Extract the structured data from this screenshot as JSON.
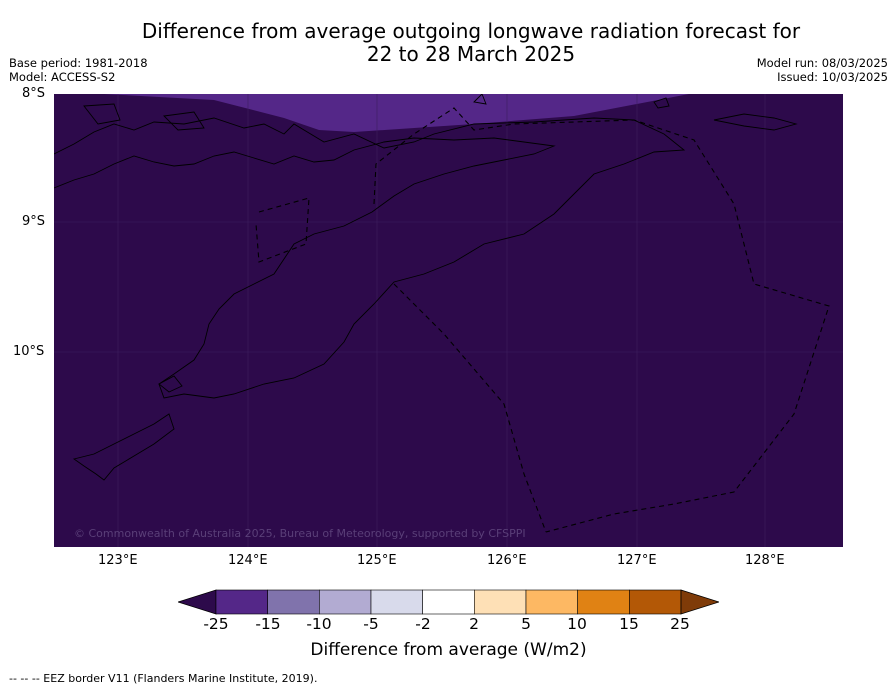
{
  "title_line1": "Difference from average outgoing longwave radiation forecast for",
  "title_line2": "22 to 28 March 2025",
  "meta_left": [
    "Base period: 1981-2018",
    "Model: ACCESS-S2"
  ],
  "meta_right": [
    "Model run: 08/03/2025",
    "Issued: 10/03/2025"
  ],
  "lat_labels": [
    "8°S",
    "9°S",
    "10°S"
  ],
  "lon_labels": [
    "123°E",
    "124°E",
    "125°E",
    "126°E",
    "127°E",
    "128°E"
  ],
  "copyright": "© Commonwealth of Australia 2025, Bureau of Meteorology, supported by CFSPPI",
  "colorbar": {
    "ticks": [
      "-25",
      "-15",
      "-10",
      "-5",
      "-2",
      "2",
      "5",
      "10",
      "15",
      "25"
    ],
    "colors": [
      "#2d0a4b",
      "#542788",
      "#8073ac",
      "#b2abd2",
      "#d8daeb",
      "#ffffff",
      "#fee0b6",
      "#fdb863",
      "#e08214",
      "#b35806",
      "#7f3b08"
    ],
    "label": "Difference from average (W/m2)"
  },
  "footnote": "--  --  -- EEZ border V11 (Flanders Marine Institute, 2019).",
  "map_colors": {
    "background": "#2d0a4b",
    "northern_band": "#542788"
  }
}
